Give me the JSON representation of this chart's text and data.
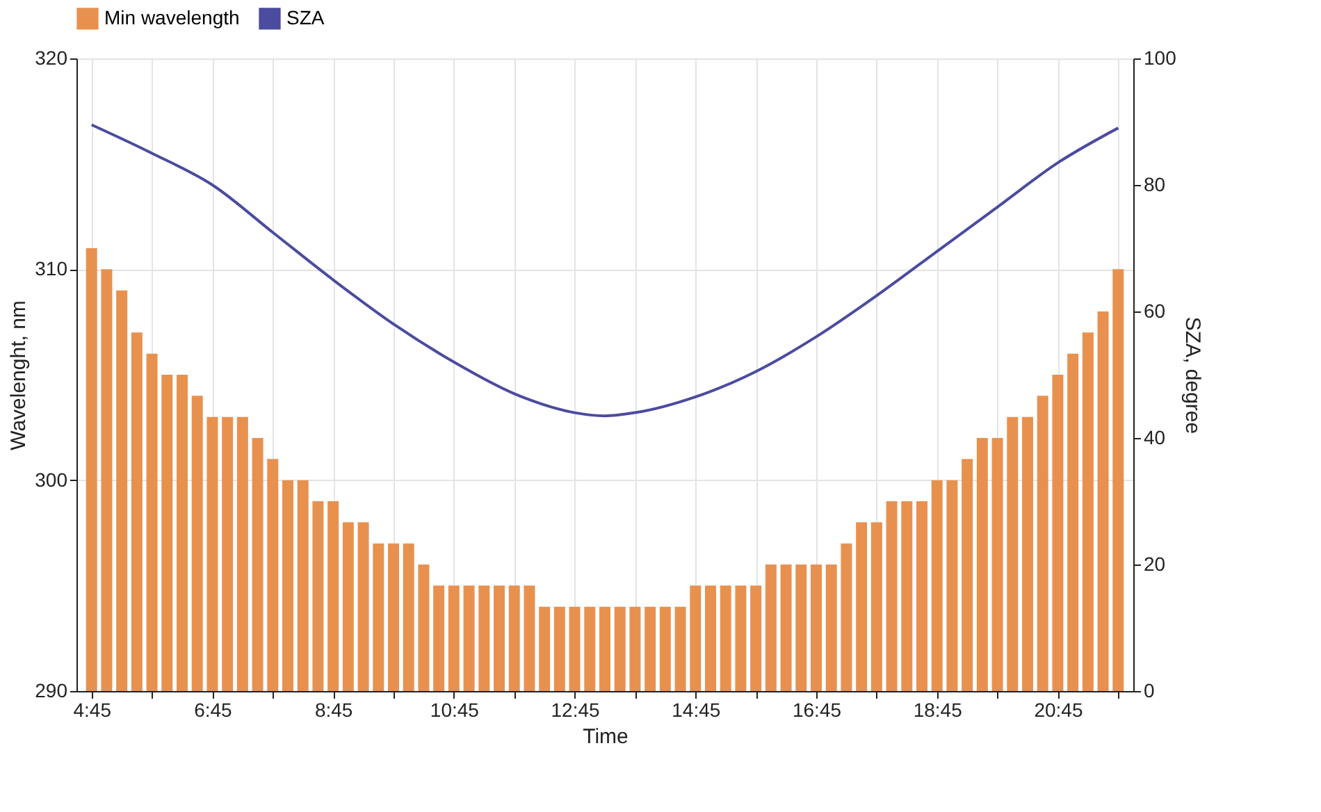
{
  "chart_data": {
    "type": "bar",
    "xlabel": "Time",
    "ylabel": "Wavelenght, nm",
    "y2label": "SZA, degree",
    "x": [
      4.75,
      5.0,
      5.25,
      5.5,
      5.75,
      6.0,
      6.25,
      6.5,
      6.75,
      7.0,
      7.25,
      7.5,
      7.75,
      8.0,
      8.25,
      8.5,
      8.75,
      9.0,
      9.25,
      9.5,
      9.75,
      10.0,
      10.25,
      10.5,
      10.75,
      11.0,
      11.25,
      11.5,
      11.75,
      12.0,
      12.25,
      12.5,
      12.75,
      13.0,
      13.25,
      13.5,
      13.75,
      14.0,
      14.25,
      14.5,
      14.75,
      15.0,
      15.25,
      15.5,
      15.75,
      16.0,
      16.25,
      16.5,
      16.75,
      17.0,
      17.25,
      17.5,
      17.75,
      18.0,
      18.25,
      18.5,
      18.75,
      19.0,
      19.25,
      19.5,
      19.75,
      20.0,
      20.25,
      20.5,
      20.75,
      21.0,
      21.25,
      21.5,
      21.75
    ],
    "series": [
      {
        "name": "Min wavelength",
        "color": "#e8914f",
        "values": [
          311,
          310,
          309,
          307,
          306,
          305,
          305,
          304,
          303,
          303,
          303,
          302,
          301,
          300,
          300,
          299,
          299,
          298,
          298,
          297,
          297,
          297,
          296,
          295,
          295,
          295,
          295,
          295,
          295,
          295,
          294,
          294,
          294,
          294,
          294,
          294,
          294,
          294,
          294,
          294,
          295,
          295,
          295,
          295,
          295,
          296,
          296,
          296,
          296,
          296,
          297,
          298,
          298,
          299,
          299,
          299,
          300,
          300,
          301,
          302,
          302,
          303,
          303,
          304,
          305,
          306,
          307,
          308,
          310
        ]
      },
      {
        "name": "SZA",
        "type": "line",
        "axis": "y2",
        "color": "#4b4ba0",
        "x": [
          4.75,
          5.75,
          6.75,
          7.75,
          8.75,
          9.75,
          10.75,
          11.75,
          12.75,
          13.25,
          13.75,
          14.75,
          15.75,
          16.75,
          17.75,
          18.75,
          19.75,
          20.75,
          21.75
        ],
        "values": [
          89.5,
          85,
          80,
          72.5,
          65,
          58,
          52,
          47,
          44,
          43.5,
          44,
          46.5,
          50.5,
          56,
          62.5,
          69.5,
          76.5,
          83.5,
          89
        ]
      }
    ],
    "xlim": [
      4.5,
      22.0
    ],
    "xticks": [
      {
        "value": 4.75,
        "label": "4:45"
      },
      {
        "value": 5.75,
        "label": null
      },
      {
        "value": 6.75,
        "label": "6:45"
      },
      {
        "value": 7.75,
        "label": null
      },
      {
        "value": 8.75,
        "label": "8:45"
      },
      {
        "value": 9.75,
        "label": null
      },
      {
        "value": 10.75,
        "label": "10:45"
      },
      {
        "value": 11.75,
        "label": null
      },
      {
        "value": 12.75,
        "label": "12:45"
      },
      {
        "value": 13.75,
        "label": null
      },
      {
        "value": 14.75,
        "label": "14:45"
      },
      {
        "value": 15.75,
        "label": null
      },
      {
        "value": 16.75,
        "label": "16:45"
      },
      {
        "value": 17.75,
        "label": null
      },
      {
        "value": 18.75,
        "label": "18:45"
      },
      {
        "value": 19.75,
        "label": null
      },
      {
        "value": 20.75,
        "label": "20:45"
      },
      {
        "value": 21.75,
        "label": null
      }
    ],
    "ylim": [
      290,
      320
    ],
    "yticks": [
      290,
      300,
      310,
      320
    ],
    "y2lim": [
      0,
      100
    ],
    "y2ticks": [
      0,
      20,
      40,
      60,
      80,
      100
    ],
    "grid": true,
    "legend": "top",
    "line_style": "solid",
    "marker": "none"
  }
}
